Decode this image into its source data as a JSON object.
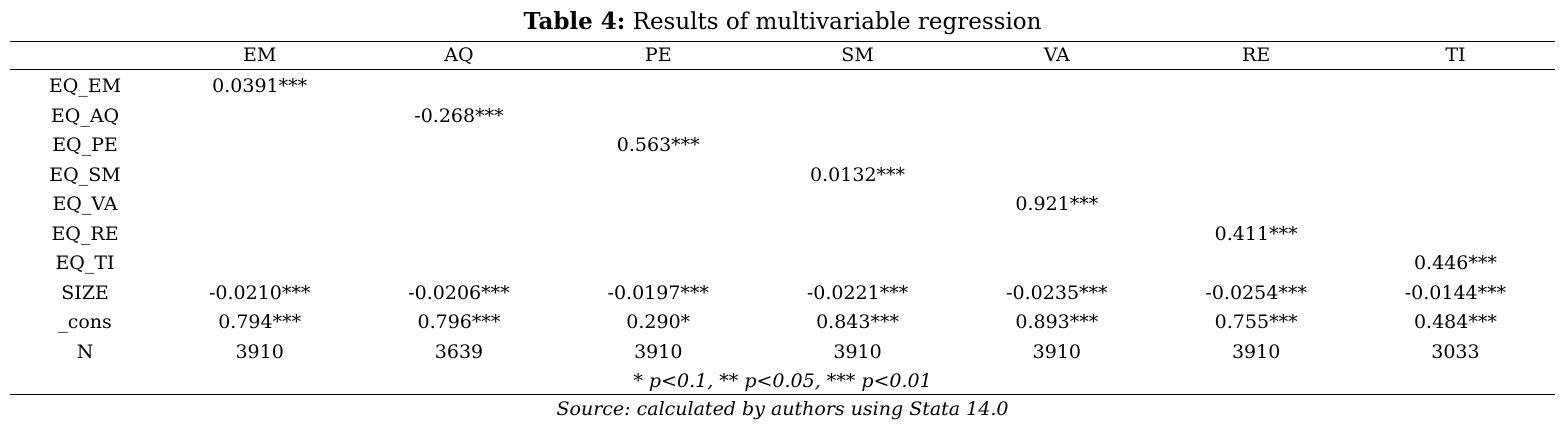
{
  "title": {
    "label": "Table 4:",
    "text": "Results of multivariable regression"
  },
  "table": {
    "columns": [
      "",
      "EM",
      "AQ",
      "PE",
      "SM",
      "VA",
      "RE",
      "TI"
    ],
    "rows": [
      {
        "label": "EQ_EM",
        "cells": [
          "0.0391***",
          "",
          "",
          "",
          "",
          "",
          ""
        ]
      },
      {
        "label": "EQ_AQ",
        "cells": [
          "",
          "-0.268***",
          "",
          "",
          "",
          "",
          ""
        ]
      },
      {
        "label": "EQ_PE",
        "cells": [
          "",
          "",
          "0.563***",
          "",
          "",
          "",
          ""
        ]
      },
      {
        "label": "EQ_SM",
        "cells": [
          "",
          "",
          "",
          "0.0132***",
          "",
          "",
          ""
        ]
      },
      {
        "label": "EQ_VA",
        "cells": [
          "",
          "",
          "",
          "",
          "0.921***",
          "",
          ""
        ]
      },
      {
        "label": "EQ_RE",
        "cells": [
          "",
          "",
          "",
          "",
          "",
          "0.411***",
          ""
        ]
      },
      {
        "label": "EQ_TI",
        "cells": [
          "",
          "",
          "",
          "",
          "",
          "",
          "0.446***"
        ]
      },
      {
        "label": "SIZE",
        "cells": [
          "-0.0210***",
          "-0.0206***",
          "-0.0197***",
          "-0.0221***",
          "-0.0235***",
          "-0.0254***",
          "-0.0144***"
        ]
      },
      {
        "label": "_cons",
        "cells": [
          "0.794***",
          "0.796***",
          "0.290*",
          "0.843***",
          "0.893***",
          "0.755***",
          "0.484***"
        ]
      },
      {
        "label": "N",
        "cells": [
          "3910",
          "3639",
          "3910",
          "3910",
          "3910",
          "3910",
          "3033"
        ]
      }
    ],
    "note": "* p<0.1, ** p<0.05, *** p<0.01"
  },
  "source": "Source: calculated by authors using Stata 14.0"
}
